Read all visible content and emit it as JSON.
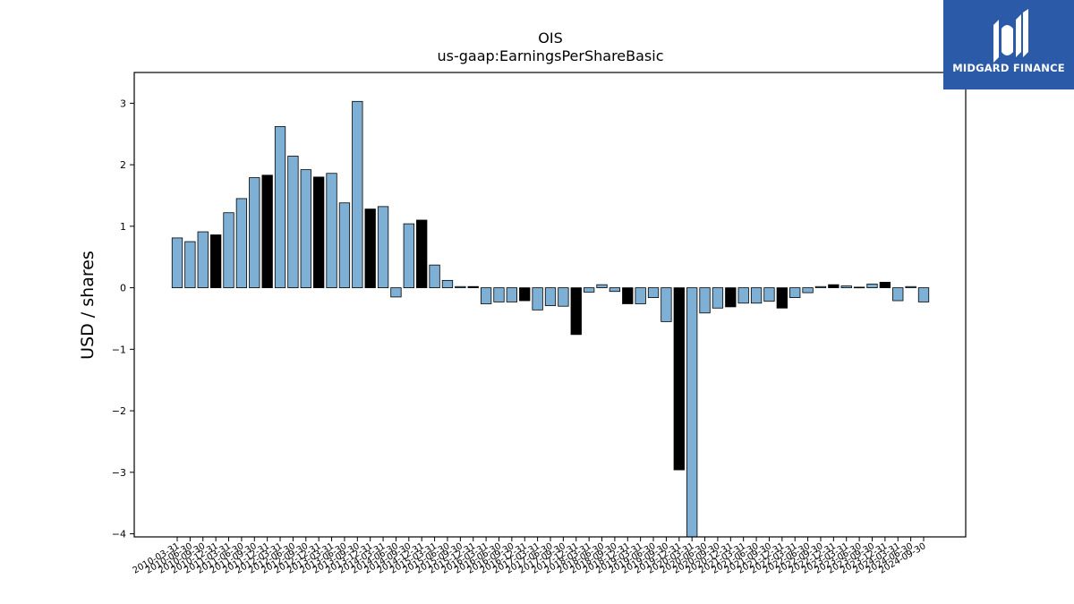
{
  "branding": {
    "logo_text": "MIDGARD FINANCE",
    "logo_bg": "#2a5aa8",
    "logo_fg": "#ffffff"
  },
  "colors": {
    "bar_blue": "#7eb0d5",
    "bar_black": "#000000",
    "edge": "#000000"
  },
  "chart_data": {
    "type": "bar",
    "title": "OIS",
    "subtitle": "us-gaap:EarningsPerShareBasic",
    "xlabel": "",
    "ylabel": "USD / shares",
    "ylim": [
      -4.05,
      3.5
    ],
    "yticks": [
      3,
      2,
      1,
      0,
      -1,
      -2,
      -3,
      -4
    ],
    "ytick_labels": [
      "3",
      "2",
      "1",
      "0",
      "−1",
      "−2",
      "−3",
      "−4"
    ],
    "grid": false,
    "legend": "none",
    "categories": [
      "2010-03-31",
      "2010-06-30",
      "2010-09-30",
      "2010-12-31",
      "2011-03-31",
      "2011-06-30",
      "2011-09-30",
      "2011-12-31",
      "2012-03-31",
      "2012-06-30",
      "2012-09-30",
      "2012-12-31",
      "2013-03-31",
      "2013-06-30",
      "2013-09-30",
      "2013-12-31",
      "2014-03-31",
      "2014-06-30",
      "2014-09-30",
      "2014-12-31",
      "2015-03-31",
      "2015-06-30",
      "2015-09-30",
      "2015-12-31",
      "2016-03-31",
      "2016-06-30",
      "2016-09-30",
      "2016-12-31",
      "2017-03-31",
      "2017-06-30",
      "2017-09-30",
      "2017-12-31",
      "2018-03-31",
      "2018-06-30",
      "2018-09-30",
      "2018-12-31",
      "2019-03-31",
      "2019-06-30",
      "2019-09-30",
      "2019-12-31",
      "2020-03-31",
      "2020-06-30",
      "2020-09-30",
      "2020-12-31",
      "2021-03-31",
      "2021-06-30",
      "2021-09-30",
      "2021-12-31",
      "2022-03-31",
      "2022-06-30",
      "2022-09-30",
      "2022-12-31",
      "2023-03-31",
      "2023-06-30",
      "2023-09-30",
      "2023-12-31",
      "2024-03-31",
      "2024-06-30",
      "2024-09-30"
    ],
    "values": [
      0.81,
      0.75,
      0.91,
      0.86,
      1.22,
      1.45,
      1.79,
      1.83,
      2.62,
      2.14,
      1.92,
      1.8,
      1.86,
      1.38,
      3.03,
      1.28,
      1.32,
      -0.15,
      1.04,
      1.1,
      0.37,
      0.12,
      0.02,
      0.02,
      -0.26,
      -0.23,
      -0.23,
      -0.21,
      -0.36,
      -0.29,
      -0.3,
      -0.76,
      -0.07,
      0.05,
      -0.06,
      -0.26,
      -0.26,
      -0.16,
      -0.55,
      -2.96,
      -4.05,
      -0.41,
      -0.33,
      -0.31,
      -0.25,
      -0.25,
      -0.22,
      -0.33,
      -0.16,
      -0.08,
      0.02,
      0.05,
      0.03,
      0.01,
      0.06,
      0.09,
      -0.21,
      0.02,
      -0.23
    ],
    "bar_colors": [
      "blue",
      "blue",
      "blue",
      "black",
      "blue",
      "blue",
      "blue",
      "black",
      "blue",
      "blue",
      "blue",
      "black",
      "blue",
      "blue",
      "blue",
      "black",
      "blue",
      "blue",
      "blue",
      "black",
      "blue",
      "blue",
      "blue",
      "black",
      "blue",
      "blue",
      "blue",
      "black",
      "blue",
      "blue",
      "blue",
      "black",
      "blue",
      "blue",
      "blue",
      "black",
      "blue",
      "blue",
      "blue",
      "black",
      "blue",
      "blue",
      "blue",
      "black",
      "blue",
      "blue",
      "blue",
      "black",
      "blue",
      "blue",
      "blue",
      "black",
      "blue",
      "blue",
      "blue",
      "black",
      "blue",
      "blue",
      "blue"
    ]
  }
}
